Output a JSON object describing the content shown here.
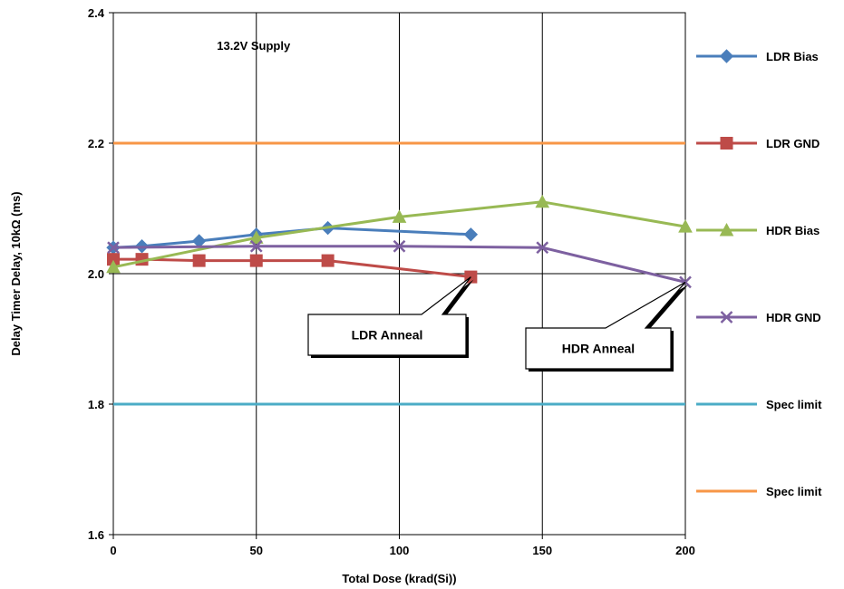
{
  "chart_data": {
    "type": "line",
    "title": "",
    "xlabel": "Total Dose (krad(Si))",
    "ylabel": "Delay Timer Delay, 10kΩ (ms)",
    "xlim": [
      0,
      200
    ],
    "ylim": [
      1.6,
      2.4
    ],
    "x_ticks": [
      0,
      50,
      100,
      150,
      200
    ],
    "y_ticks": [
      1.6,
      1.8,
      2.0,
      2.2,
      2.4
    ],
    "x_tick_labels": [
      "0",
      "50",
      "100",
      "150",
      "200"
    ],
    "y_tick_labels": [
      "1.6",
      "1.8",
      "2.0",
      "2.2",
      "2.4"
    ],
    "grid": true,
    "legend_position": "right",
    "series": [
      {
        "name": "LDR Bias",
        "color": "#4a7ebb",
        "marker": "diamond",
        "x": [
          0,
          10,
          30,
          50,
          75,
          125
        ],
        "y": [
          2.04,
          2.042,
          2.05,
          2.06,
          2.07,
          2.06
        ]
      },
      {
        "name": "LDR GND",
        "color": "#be4b48",
        "marker": "square",
        "x": [
          0,
          10,
          30,
          50,
          75,
          125
        ],
        "y": [
          2.022,
          2.022,
          2.02,
          2.02,
          2.02,
          1.995
        ]
      },
      {
        "name": "HDR Bias",
        "color": "#98b954",
        "marker": "triangle",
        "x": [
          0,
          50,
          100,
          150,
          200
        ],
        "y": [
          2.01,
          2.055,
          2.087,
          2.11,
          2.072
        ]
      },
      {
        "name": "HDR GND",
        "color": "#7d60a0",
        "marker": "x",
        "x": [
          0,
          50,
          100,
          150,
          200
        ],
        "y": [
          2.04,
          2.042,
          2.042,
          2.04,
          1.987
        ]
      },
      {
        "name": "Spec limit",
        "color": "#4bacc6",
        "marker": "none",
        "x": [
          0,
          200
        ],
        "y": [
          1.8,
          1.8
        ]
      },
      {
        "name": "Spec limit",
        "color": "#f79646",
        "marker": "none",
        "x": [
          0,
          200
        ],
        "y": [
          2.2,
          2.2
        ]
      }
    ],
    "annotations": [
      {
        "text": "13.2V Supply"
      },
      {
        "text": "LDR Anneal",
        "target": {
          "x": 125,
          "y": 1.995
        }
      },
      {
        "text": "HDR Anneal",
        "target": {
          "x": 200,
          "y": 1.987
        }
      }
    ]
  }
}
